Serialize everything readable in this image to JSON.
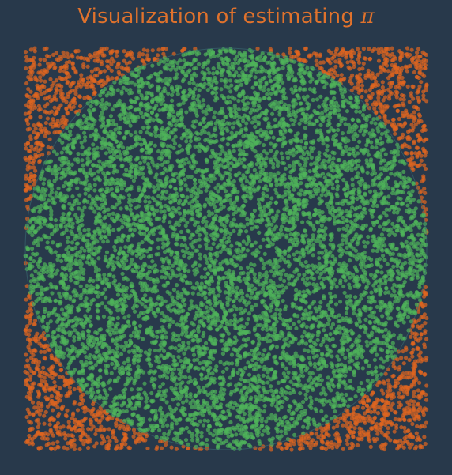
{
  "title": {
    "text": "Visualization of estimating ",
    "symbol": "π"
  },
  "colors": {
    "background": "#28394b",
    "title": "#e0722c",
    "inside_points": "#4fb35a",
    "outside_points": "#e0651f"
  },
  "chart_data": {
    "type": "scatter",
    "title": "Visualization of estimating π",
    "xlabel": "",
    "ylabel": "",
    "xlim": [
      -1,
      1
    ],
    "ylim": [
      -1,
      1
    ],
    "grid": false,
    "legend": "none",
    "axes_visible": false,
    "aspect": "equal",
    "sampling": "uniform random points in the square [-1, 1] x [-1, 1]",
    "approx_point_count": 10000,
    "series": [
      {
        "rule": "x^2 + y^2 <= 1",
        "color": "#4fb35a",
        "alpha": 0.7
      },
      {
        "rule": "x^2 + y^2 > 1",
        "color": "#e0651f",
        "alpha": 0.7
      }
    ],
    "overlay": {
      "shape": "circle",
      "center": [
        0,
        0
      ],
      "radius": 1,
      "fill": "none"
    }
  }
}
